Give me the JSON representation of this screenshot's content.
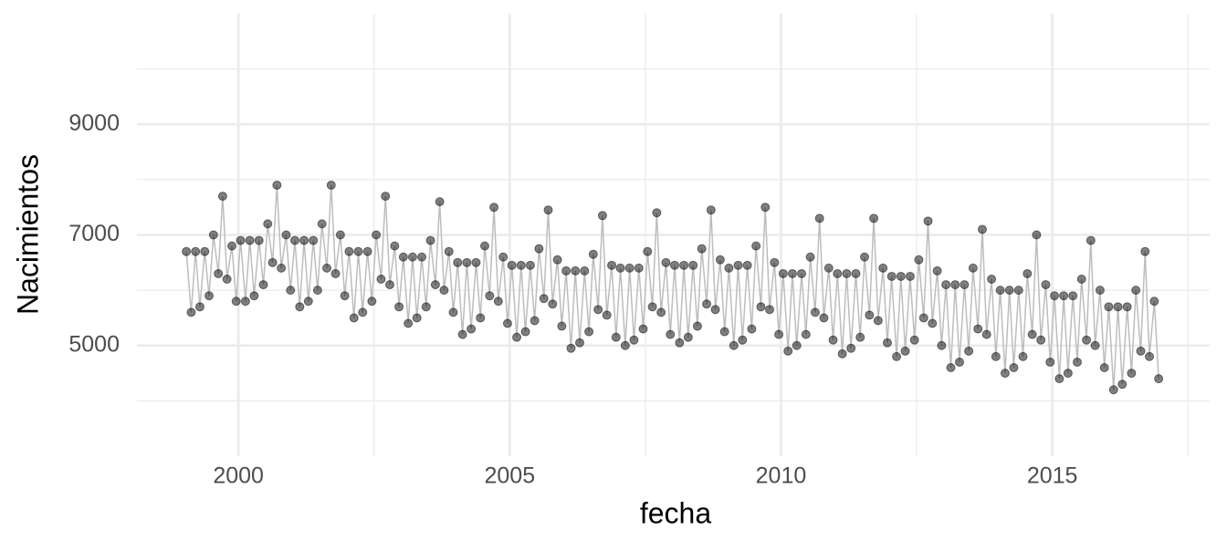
{
  "chart_data": {
    "type": "line",
    "xlabel": "fecha",
    "ylabel": "Nacimientos",
    "xlim": [
      1998.13,
      2017.9
    ],
    "ylim": [
      3000,
      11000
    ],
    "xticks": [
      2000,
      2005,
      2010,
      2015
    ],
    "yticks": [
      5000,
      7000,
      9000
    ],
    "xminor": [
      2002.5,
      2007.5,
      2012.5,
      2017.5
    ],
    "yminor": [
      4000,
      6000,
      8000,
      10000
    ],
    "grid": true,
    "color": "#000000",
    "line_color": "#bdbdbd",
    "x": [
      1999.04,
      1999.13,
      1999.21,
      1999.29,
      1999.38,
      1999.46,
      1999.54,
      1999.63,
      1999.71,
      1999.79,
      1999.88,
      1999.96,
      2000.04,
      2000.13,
      2000.21,
      2000.29,
      2000.38,
      2000.46,
      2000.54,
      2000.63,
      2000.71,
      2000.79,
      2000.88,
      2000.96,
      2001.04,
      2001.13,
      2001.21,
      2001.29,
      2001.38,
      2001.46,
      2001.54,
      2001.63,
      2001.71,
      2001.79,
      2001.88,
      2001.96,
      2002.04,
      2002.13,
      2002.21,
      2002.29,
      2002.38,
      2002.46,
      2002.54,
      2002.63,
      2002.71,
      2002.79,
      2002.88,
      2002.96,
      2003.04,
      2003.13,
      2003.21,
      2003.29,
      2003.38,
      2003.46,
      2003.54,
      2003.63,
      2003.71,
      2003.79,
      2003.88,
      2003.96,
      2004.04,
      2004.13,
      2004.21,
      2004.29,
      2004.38,
      2004.46,
      2004.54,
      2004.63,
      2004.71,
      2004.79,
      2004.88,
      2004.96,
      2005.04,
      2005.13,
      2005.21,
      2005.29,
      2005.38,
      2005.46,
      2005.54,
      2005.63,
      2005.71,
      2005.79,
      2005.88,
      2005.96,
      2006.04,
      2006.13,
      2006.21,
      2006.29,
      2006.38,
      2006.46,
      2006.54,
      2006.63,
      2006.71,
      2006.79,
      2006.88,
      2006.96,
      2007.04,
      2007.13,
      2007.21,
      2007.29,
      2007.38,
      2007.46,
      2007.54,
      2007.63,
      2007.71,
      2007.79,
      2007.88,
      2007.96,
      2008.04,
      2008.13,
      2008.21,
      2008.29,
      2008.38,
      2008.46,
      2008.54,
      2008.63,
      2008.71,
      2008.79,
      2008.88,
      2008.96,
      2009.04,
      2009.13,
      2009.21,
      2009.29,
      2009.38,
      2009.46,
      2009.54,
      2009.63,
      2009.71,
      2009.79,
      2009.88,
      2009.96,
      2010.04,
      2010.13,
      2010.21,
      2010.29,
      2010.38,
      2010.46,
      2010.54,
      2010.63,
      2010.71,
      2010.79,
      2010.88,
      2010.96,
      2011.04,
      2011.13,
      2011.21,
      2011.29,
      2011.38,
      2011.46,
      2011.54,
      2011.63,
      2011.71,
      2011.79,
      2011.88,
      2011.96,
      2012.04,
      2012.13,
      2012.21,
      2012.29,
      2012.38,
      2012.46,
      2012.54,
      2012.63,
      2012.71,
      2012.79,
      2012.88,
      2012.96,
      2013.04,
      2013.13,
      2013.21,
      2013.29,
      2013.38,
      2013.46,
      2013.54,
      2013.63,
      2013.71,
      2013.79,
      2013.88,
      2013.96,
      2014.04,
      2014.13,
      2014.21,
      2014.29,
      2014.38,
      2014.46,
      2014.54,
      2014.63,
      2014.71,
      2014.79,
      2014.88,
      2014.96,
      2015.04,
      2015.13,
      2015.21,
      2015.29,
      2015.38,
      2015.46,
      2015.54,
      2015.63,
      2015.71,
      2015.79,
      2015.88,
      2015.96,
      2016.04,
      2016.13,
      2016.21,
      2016.29,
      2016.38,
      2016.46,
      2016.54,
      2016.63,
      2016.71,
      2016.79,
      2016.88,
      2016.96
    ],
    "values": [
      6700,
      5600,
      6700,
      5700,
      6700,
      5900,
      7000,
      6300,
      7700,
      6200,
      6800,
      5800,
      6900,
      5800,
      6900,
      5900,
      6900,
      6100,
      7200,
      6500,
      7900,
      6400,
      7000,
      6000,
      6900,
      5700,
      6900,
      5800,
      6900,
      6000,
      7200,
      6400,
      7900,
      6300,
      7000,
      5900,
      6700,
      5500,
      6700,
      5600,
      6700,
      5800,
      7000,
      6200,
      7700,
      6100,
      6800,
      5700,
      6600,
      5400,
      6600,
      5500,
      6600,
      5700,
      6900,
      6100,
      7600,
      6000,
      6700,
      5600,
      6500,
      5200,
      6500,
      5300,
      6500,
      5500,
      6800,
      5900,
      7500,
      5800,
      6600,
      5400,
      6450,
      5150,
      6450,
      5250,
      6450,
      5450,
      6750,
      5850,
      7450,
      5750,
      6550,
      5350,
      6350,
      4950,
      6350,
      5050,
      6350,
      5250,
      6650,
      5650,
      7350,
      5550,
      6450,
      5150,
      6400,
      5000,
      6400,
      5100,
      6400,
      5300,
      6700,
      5700,
      7400,
      5600,
      6500,
      5200,
      6450,
      5050,
      6450,
      5150,
      6450,
      5350,
      6750,
      5750,
      7450,
      5650,
      6550,
      5250,
      6400,
      5000,
      6450,
      5100,
      6450,
      5300,
      6800,
      5700,
      7500,
      5650,
      6500,
      5200,
      6300,
      4900,
      6300,
      5000,
      6300,
      5200,
      6600,
      5600,
      7300,
      5500,
      6400,
      5100,
      6300,
      4850,
      6300,
      4950,
      6300,
      5150,
      6600,
      5550,
      7300,
      5450,
      6400,
      5050,
      6250,
      4800,
      6250,
      4900,
      6250,
      5100,
      6550,
      5500,
      7250,
      5400,
      6350,
      5000,
      6100,
      4600,
      6100,
      4700,
      6100,
      4900,
      6400,
      5300,
      7100,
      5200,
      6200,
      4800,
      6000,
      4500,
      6000,
      4600,
      6000,
      4800,
      6300,
      5200,
      7000,
      5100,
      6100,
      4700,
      5900,
      4400,
      5900,
      4500,
      5900,
      4700,
      6200,
      5100,
      6900,
      5000,
      6000,
      4600,
      5700,
      4200,
      5700,
      4300,
      5700,
      4500,
      6000,
      4900,
      6700,
      4800,
      5800,
      4400
    ]
  }
}
